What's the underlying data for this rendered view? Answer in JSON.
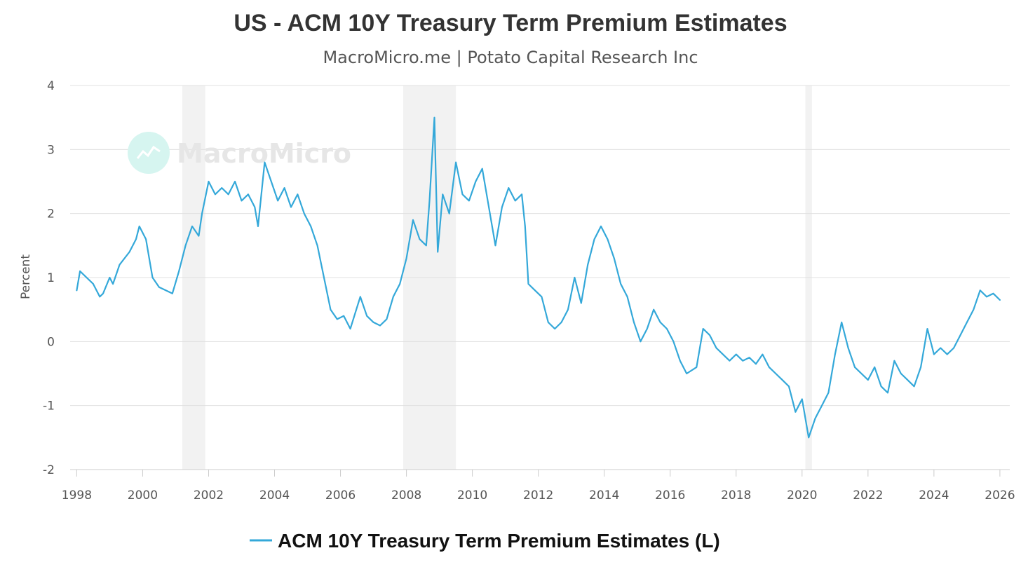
{
  "chart_data": {
    "type": "line",
    "title": "US - ACM 10Y Treasury Term Premium Estimates",
    "subtitle": "MacroMicro.me | Potato Capital Research Inc",
    "watermark": "MacroMicro",
    "ylabel": "Percent",
    "xlabel": "",
    "ylim": [
      -2,
      4
    ],
    "xlim": [
      1997.8,
      2026.3
    ],
    "yticks": [
      "-2",
      "-1",
      "0",
      "1",
      "2",
      "3",
      "4"
    ],
    "xticks": [
      "1998",
      "2000",
      "2002",
      "2004",
      "2006",
      "2008",
      "2010",
      "2012",
      "2014",
      "2016",
      "2018",
      "2020",
      "2022",
      "2024",
      "2026"
    ],
    "recessions": [
      [
        2001.2,
        2001.9
      ],
      [
        2007.9,
        2009.5
      ],
      [
        2020.1,
        2020.3
      ]
    ],
    "line_color": "#34a8d9",
    "recession_color": "#f2f2f2",
    "legend": {
      "label": "ACM 10Y Treasury Term Premium Estimates (L)",
      "position": "bottom-center"
    },
    "series": [
      {
        "name": "ACM 10Y Treasury Term Premium Estimates (L)",
        "x": [
          1998.0,
          1998.1,
          1998.3,
          1998.5,
          1998.7,
          1998.8,
          1999.0,
          1999.1,
          1999.3,
          1999.6,
          1999.8,
          1999.9,
          2000.1,
          2000.3,
          2000.5,
          2000.7,
          2000.9,
          2001.1,
          2001.3,
          2001.5,
          2001.7,
          2001.8,
          2002.0,
          2002.2,
          2002.4,
          2002.6,
          2002.8,
          2003.0,
          2003.2,
          2003.4,
          2003.5,
          2003.7,
          2003.9,
          2004.1,
          2004.3,
          2004.5,
          2004.7,
          2004.9,
          2005.1,
          2005.3,
          2005.5,
          2005.7,
          2005.9,
          2006.1,
          2006.3,
          2006.6,
          2006.8,
          2007.0,
          2007.2,
          2007.4,
          2007.6,
          2007.8,
          2008.0,
          2008.2,
          2008.4,
          2008.6,
          2008.7,
          2008.85,
          2008.95,
          2009.1,
          2009.3,
          2009.5,
          2009.7,
          2009.9,
          2010.1,
          2010.3,
          2010.5,
          2010.7,
          2010.9,
          2011.1,
          2011.3,
          2011.5,
          2011.6,
          2011.7,
          2011.9,
          2012.1,
          2012.3,
          2012.5,
          2012.7,
          2012.9,
          2013.1,
          2013.3,
          2013.5,
          2013.7,
          2013.9,
          2014.1,
          2014.3,
          2014.5,
          2014.7,
          2014.9,
          2015.1,
          2015.3,
          2015.5,
          2015.7,
          2015.9,
          2016.1,
          2016.3,
          2016.5,
          2016.8,
          2017.0,
          2017.2,
          2017.4,
          2017.6,
          2017.8,
          2018.0,
          2018.2,
          2018.4,
          2018.6,
          2018.8,
          2019.0,
          2019.2,
          2019.4,
          2019.6,
          2019.8,
          2020.0,
          2020.2,
          2020.4,
          2020.6,
          2020.8,
          2021.0,
          2021.2,
          2021.4,
          2021.6,
          2021.8,
          2022.0,
          2022.2,
          2022.4,
          2022.6,
          2022.8,
          2023.0,
          2023.2,
          2023.4,
          2023.6,
          2023.8,
          2024.0,
          2024.2,
          2024.4,
          2024.6,
          2024.8,
          2025.0,
          2025.2,
          2025.4,
          2025.6,
          2025.8,
          2026.0
        ],
        "values": [
          0.8,
          1.1,
          1.0,
          0.9,
          0.7,
          0.75,
          1.0,
          0.9,
          1.2,
          1.4,
          1.6,
          1.8,
          1.6,
          1.0,
          0.85,
          0.8,
          0.75,
          1.1,
          1.5,
          1.8,
          1.65,
          2.0,
          2.5,
          2.3,
          2.4,
          2.3,
          2.5,
          2.2,
          2.3,
          2.1,
          1.8,
          2.8,
          2.5,
          2.2,
          2.4,
          2.1,
          2.3,
          2.0,
          1.8,
          1.5,
          1.0,
          0.5,
          0.35,
          0.4,
          0.2,
          0.7,
          0.4,
          0.3,
          0.25,
          0.35,
          0.7,
          0.9,
          1.3,
          1.9,
          1.6,
          1.5,
          2.2,
          3.5,
          1.4,
          2.3,
          2.0,
          2.8,
          2.3,
          2.2,
          2.5,
          2.7,
          2.1,
          1.5,
          2.1,
          2.4,
          2.2,
          2.3,
          1.8,
          0.9,
          0.8,
          0.7,
          0.3,
          0.2,
          0.3,
          0.5,
          1.0,
          0.6,
          1.2,
          1.6,
          1.8,
          1.6,
          1.3,
          0.9,
          0.7,
          0.3,
          0.0,
          0.2,
          0.5,
          0.3,
          0.2,
          0.0,
          -0.3,
          -0.5,
          -0.4,
          0.2,
          0.1,
          -0.1,
          -0.2,
          -0.3,
          -0.2,
          -0.3,
          -0.25,
          -0.35,
          -0.2,
          -0.4,
          -0.5,
          -0.6,
          -0.7,
          -1.1,
          -0.9,
          -1.5,
          -1.2,
          -1.0,
          -0.8,
          -0.2,
          0.3,
          -0.1,
          -0.4,
          -0.5,
          -0.6,
          -0.4,
          -0.7,
          -0.8,
          -0.3,
          -0.5,
          -0.6,
          -0.7,
          -0.4,
          0.2,
          -0.2,
          -0.1,
          -0.2,
          -0.1,
          0.1,
          0.3,
          0.5,
          0.8,
          0.7,
          0.75,
          0.65
        ]
      }
    ]
  }
}
